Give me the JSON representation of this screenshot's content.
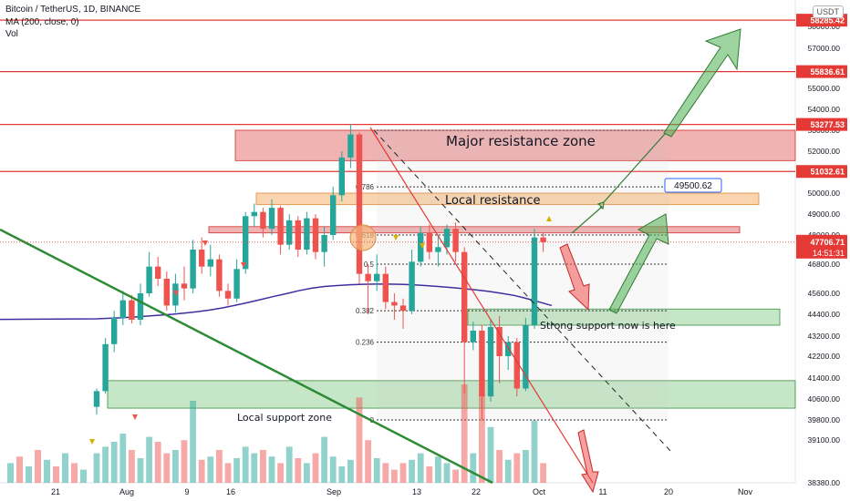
{
  "header": {
    "symbol_line": "Bitcoin / TetherUS, 1D, BINANCE",
    "ma_line": "MA (200, close, 0)",
    "vol_line": "Vol",
    "currency_button": "USDT"
  },
  "colors": {
    "up": "#26a69a",
    "down": "#ef5350",
    "resistance_line": "#e53935",
    "ma": "#3f2e9e",
    "trendline": "#2e8b35",
    "green_zone": "#4caf50",
    "red_zone": "#e57373",
    "orange_zone": "#f5b77a",
    "current_price": "#e53935"
  },
  "chart_data": {
    "type": "candlestick",
    "y_ticks": [
      "58000.00",
      "57000.00",
      "56000.00",
      "55000.00",
      "54000.00",
      "53000.00",
      "52000.00",
      "51000.00",
      "50000.00",
      "49000.00",
      "48000.00",
      "46800.00",
      "45600.00",
      "44400.00",
      "43200.00",
      "42200.00",
      "41400.00",
      "40600.00",
      "39800.00",
      "39100.00",
      "38380.00"
    ],
    "x_ticks": [
      "21",
      "Aug",
      "9",
      "16",
      "Sep",
      "13",
      "22",
      "Oct",
      "11",
      "20",
      "Nov"
    ],
    "price_labels": [
      {
        "label": "58285.42",
        "value": 58285.42
      },
      {
        "label": "55836.61",
        "value": 55836.61
      },
      {
        "label": "53277.53",
        "value": 53277.53
      },
      {
        "label": "51032.61",
        "value": 51032.61
      }
    ],
    "current_price": {
      "label": "47706.71",
      "countdown": "14:51:31",
      "value": 47706.71
    },
    "candles": [
      [
        40300,
        40900,
        40000,
        41000
      ],
      [
        40900,
        42800,
        40800,
        43100
      ],
      [
        42800,
        44200,
        42400,
        44600
      ],
      [
        44200,
        45200,
        43800,
        45700
      ],
      [
        45200,
        44100,
        43900,
        45500
      ],
      [
        44100,
        45600,
        43800,
        46000
      ],
      [
        45600,
        46700,
        45400,
        47300
      ],
      [
        46700,
        46200,
        45900,
        47100
      ],
      [
        46200,
        44900,
        44600,
        46500
      ],
      [
        44900,
        46000,
        44500,
        46400
      ],
      [
        46000,
        45800,
        45200,
        46700
      ],
      [
        45800,
        47400,
        45600,
        47800
      ],
      [
        47400,
        46700,
        46400,
        47900
      ],
      [
        46700,
        47000,
        46300,
        47600
      ],
      [
        47000,
        45700,
        45400,
        47200
      ],
      [
        45700,
        45300,
        44900,
        46000
      ],
      [
        45300,
        46600,
        45100,
        47000
      ],
      [
        46600,
        48900,
        46400,
        49100
      ],
      [
        48900,
        49100,
        48400,
        49500
      ],
      [
        49100,
        48300,
        47900,
        49300
      ],
      [
        48300,
        49300,
        48000,
        49700
      ],
      [
        49300,
        47600,
        47200,
        49400
      ],
      [
        47600,
        48700,
        47400,
        49000
      ],
      [
        48700,
        47400,
        47100,
        48900
      ],
      [
        47400,
        48800,
        47200,
        49100
      ],
      [
        48800,
        47300,
        47000,
        49000
      ],
      [
        47300,
        48000,
        46700,
        48400
      ],
      [
        48000,
        49900,
        47800,
        50300
      ],
      [
        49900,
        51700,
        49600,
        52000
      ],
      [
        51700,
        52800,
        51200,
        53300
      ],
      [
        52800,
        46400,
        46000,
        52900
      ],
      [
        46400,
        46100,
        44400,
        46800
      ],
      [
        46100,
        46400,
        45700,
        47200
      ],
      [
        46400,
        45100,
        44700,
        46700
      ],
      [
        45100,
        44900,
        44100,
        45600
      ],
      [
        44900,
        44600,
        43600,
        45300
      ],
      [
        44600,
        46900,
        44400,
        47400
      ],
      [
        46900,
        48100,
        46700,
        48400
      ],
      [
        48100,
        47300,
        47000,
        48500
      ],
      [
        47300,
        47500,
        46700,
        48000
      ],
      [
        47500,
        48300,
        47200,
        48500
      ],
      [
        48300,
        47300,
        46900,
        48600
      ],
      [
        47300,
        42900,
        40800,
        47500
      ],
      [
        42900,
        43500,
        42500,
        44000
      ],
      [
        43500,
        40700,
        39800,
        43800
      ],
      [
        40700,
        43700,
        40500,
        44100
      ],
      [
        43700,
        42200,
        41200,
        44300
      ],
      [
        42200,
        42900,
        41700,
        43200
      ],
      [
        42900,
        41000,
        40700,
        43100
      ],
      [
        41000,
        43800,
        40900,
        44200
      ],
      [
        43800,
        47900,
        43600,
        48300
      ],
      [
        47900,
        47706.71,
        47300,
        48100
      ]
    ],
    "ma200": [
      44150,
      44180,
      44210,
      44250,
      44300,
      44350,
      44400,
      44470,
      44550,
      44650,
      44770,
      44920,
      45080,
      45250,
      45420,
      45580,
      45710,
      45810,
      45880,
      45920,
      45950,
      45970,
      45980,
      45980,
      45970,
      45950,
      45920,
      45880,
      45840,
      45790,
      45740,
      45680,
      45600,
      45480,
      45300,
      45100
    ],
    "volumes": [
      0.18,
      0.22,
      0.25,
      0.3,
      0.2,
      0.15,
      0.28,
      0.25,
      0.18,
      0.2,
      0.26,
      0.5,
      0.14,
      0.16,
      0.2,
      0.12,
      0.15,
      0.22,
      0.18,
      0.2,
      0.16,
      0.12,
      0.22,
      0.15,
      0.12,
      0.18,
      0.28,
      0.16,
      0.1,
      0.14,
      0.52,
      0.26,
      0.15,
      0.12,
      0.08,
      0.12,
      0.14,
      0.18,
      0.1,
      0.16,
      0.12,
      0.08,
      0.6,
      0.18,
      0.55,
      0.34,
      0.2,
      0.14,
      0.18,
      0.2,
      0.38,
      0.12
    ],
    "fib_levels": [
      {
        "label": "0.786",
        "value": 50300
      },
      {
        "label": "0.618",
        "value": 48000
      },
      {
        "label": "0.5",
        "value": 46800
      },
      {
        "label": "0.382",
        "value": 44600
      },
      {
        "label": "0.236",
        "value": 42900
      },
      {
        "label": "0",
        "value": 39800
      }
    ],
    "zones": [
      {
        "label": "Major resistance zone",
        "top": 53000,
        "bottom": 51550,
        "color": "red"
      },
      {
        "label": "Local resistance",
        "top": 50000,
        "bottom": 49450,
        "color": "orange"
      },
      {
        "label": "",
        "top": 48400,
        "bottom": 48100,
        "color": "red"
      },
      {
        "label": "Strong support now is here",
        "top": 44700,
        "bottom": 43800,
        "color": "green"
      },
      {
        "label": "Local support zone",
        "top": 41300,
        "bottom": 40250,
        "color": "green"
      }
    ],
    "annotations": [
      {
        "label": "49500.62",
        "value": 49500.62
      }
    ]
  }
}
